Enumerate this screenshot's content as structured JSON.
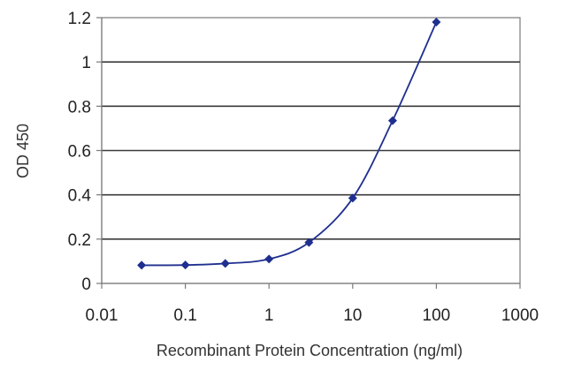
{
  "chart_data": {
    "type": "line",
    "x_scale": "log",
    "title": "",
    "xlabel": "Recombinant Protein Concentration (ng/ml)",
    "ylabel": "OD 450",
    "xlim": [
      0.01,
      1000
    ],
    "ylim": [
      0,
      1.2
    ],
    "x_ticks": [
      0.01,
      0.1,
      1,
      10,
      100,
      1000
    ],
    "x_tick_labels": [
      "0.01",
      "0.1",
      "1",
      "10",
      "100",
      "1000"
    ],
    "y_ticks": [
      0,
      0.2,
      0.4,
      0.6,
      0.8,
      1,
      1.2
    ],
    "y_tick_labels": [
      "0",
      "0.2",
      "0.4",
      "0.6",
      "0.8",
      "1",
      "1.2"
    ],
    "grid": "horizontal",
    "legend": "none",
    "series": [
      {
        "color": "#1f2f8f",
        "x": [
          0.03,
          0.1,
          0.3,
          1,
          3,
          10,
          30,
          100
        ],
        "y": [
          0.082,
          0.083,
          0.09,
          0.11,
          0.185,
          0.385,
          0.735,
          1.18
        ]
      }
    ]
  }
}
